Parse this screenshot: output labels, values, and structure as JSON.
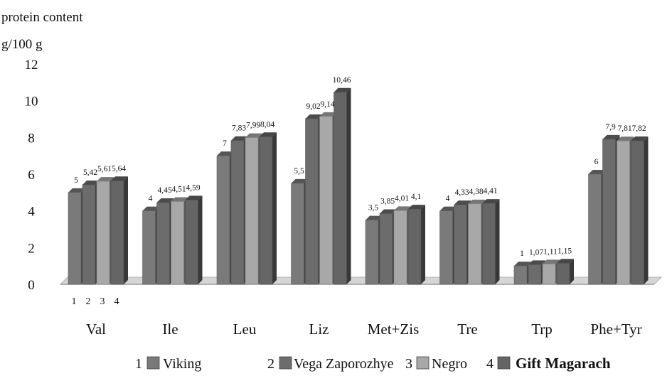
{
  "chart_data": {
    "type": "bar",
    "ylabel_line1": "protein content",
    "ylabel_line2": "g/100 g",
    "ylim": [
      0,
      12
    ],
    "yticks": [
      0,
      2,
      4,
      6,
      8,
      10,
      12
    ],
    "categories": [
      "Val",
      "Ile",
      "Leu",
      "Liz",
      "Met+Zis",
      "Tre",
      "Trp",
      "Phe+Tyr"
    ],
    "series": [
      {
        "name": "Viking",
        "number": "1",
        "color": "#7a7a7a",
        "values": [
          5,
          4,
          7,
          5.5,
          3.5,
          4,
          1,
          6
        ],
        "labels": [
          "5",
          "4",
          "7",
          "5,5",
          "3,5",
          "4",
          "1",
          "6"
        ]
      },
      {
        "name": "Vega Zaporozhye",
        "number": "2",
        "color": "#6c6c6c",
        "values": [
          5.42,
          4.45,
          7.83,
          9.02,
          3.85,
          4.33,
          1.07,
          7.9
        ],
        "labels": [
          "5,42",
          "4,45",
          "7,83",
          "9,02",
          "3,85",
          "4,33",
          "1,07",
          "7,9"
        ]
      },
      {
        "name": "Negro",
        "number": "3",
        "color": "#a8a8a8",
        "values": [
          5.61,
          4.51,
          7.99,
          9.14,
          4.01,
          4.38,
          1.11,
          7.81
        ],
        "labels": [
          "5,61",
          "4,51",
          "7,99",
          "9,14",
          "4,01",
          "4,38",
          "1,11",
          "7,81"
        ]
      },
      {
        "name": "Gift Magarach",
        "number": "4",
        "color": "#656565",
        "values": [
          5.64,
          4.59,
          8.04,
          10.46,
          4.1,
          4.41,
          1.15,
          7.82
        ],
        "labels": [
          "5,64",
          "4,59",
          "8,04",
          "10,46",
          "4,1",
          "4,41",
          "1,15",
          "7,82"
        ]
      }
    ],
    "bar_numbers": [
      "1",
      "2",
      "3",
      "4"
    ],
    "grid": false,
    "legend_position": "bottom"
  }
}
